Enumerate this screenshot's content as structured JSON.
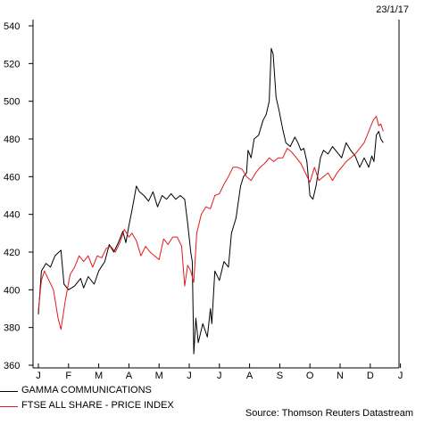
{
  "date_label": "23/1/17",
  "source": "Source: Thomson Reuters Datastream",
  "chart_data": {
    "type": "line",
    "yticks": [
      360,
      380,
      400,
      420,
      440,
      460,
      480,
      500,
      520,
      540
    ],
    "ylim": [
      360,
      540
    ],
    "months": [
      "J",
      "F",
      "M",
      "A",
      "M",
      "J",
      "J",
      "A",
      "S",
      "O",
      "N",
      "D",
      "J"
    ],
    "series": [
      {
        "name": "GAMMA COMMUNICATIONS",
        "color": "#000000",
        "values": [
          [
            0,
            387
          ],
          [
            0.1,
            410
          ],
          [
            0.25,
            414
          ],
          [
            0.4,
            412
          ],
          [
            0.55,
            418
          ],
          [
            0.75,
            421
          ],
          [
            0.85,
            403
          ],
          [
            1.0,
            400
          ],
          [
            1.2,
            402
          ],
          [
            1.4,
            406
          ],
          [
            1.5,
            401
          ],
          [
            1.65,
            407
          ],
          [
            1.85,
            403
          ],
          [
            2.0,
            410
          ],
          [
            2.2,
            415
          ],
          [
            2.35,
            424
          ],
          [
            2.5,
            420
          ],
          [
            2.65,
            425
          ],
          [
            2.8,
            431
          ],
          [
            2.9,
            425
          ],
          [
            3.0,
            434
          ],
          [
            3.1,
            442
          ],
          [
            3.25,
            455
          ],
          [
            3.35,
            452
          ],
          [
            3.5,
            450
          ],
          [
            3.65,
            447
          ],
          [
            3.8,
            452
          ],
          [
            3.95,
            444
          ],
          [
            4.1,
            450
          ],
          [
            4.25,
            448
          ],
          [
            4.4,
            451
          ],
          [
            4.55,
            448
          ],
          [
            4.7,
            450
          ],
          [
            4.85,
            448
          ],
          [
            4.95,
            435
          ],
          [
            5.05,
            420
          ],
          [
            5.1,
            415
          ],
          [
            5.15,
            366
          ],
          [
            5.22,
            385
          ],
          [
            5.3,
            372
          ],
          [
            5.45,
            382
          ],
          [
            5.6,
            375
          ],
          [
            5.7,
            390
          ],
          [
            5.75,
            382
          ],
          [
            5.85,
            410
          ],
          [
            6.0,
            405
          ],
          [
            6.15,
            415
          ],
          [
            6.3,
            412
          ],
          [
            6.4,
            430
          ],
          [
            6.55,
            438
          ],
          [
            6.7,
            455
          ],
          [
            6.8,
            460
          ],
          [
            6.9,
            462
          ],
          [
            6.95,
            474
          ],
          [
            7.05,
            470
          ],
          [
            7.15,
            480
          ],
          [
            7.3,
            482
          ],
          [
            7.45,
            490
          ],
          [
            7.55,
            493
          ],
          [
            7.65,
            500
          ],
          [
            7.72,
            528
          ],
          [
            7.78,
            525
          ],
          [
            7.88,
            502
          ],
          [
            7.98,
            495
          ],
          [
            8.1,
            485
          ],
          [
            8.2,
            478
          ],
          [
            8.35,
            476
          ],
          [
            8.5,
            481
          ],
          [
            8.6,
            478
          ],
          [
            8.7,
            474
          ],
          [
            8.8,
            475
          ],
          [
            8.9,
            468
          ],
          [
            9.0,
            450
          ],
          [
            9.1,
            448
          ],
          [
            9.2,
            455
          ],
          [
            9.35,
            470
          ],
          [
            9.45,
            474
          ],
          [
            9.6,
            472
          ],
          [
            9.75,
            476
          ],
          [
            9.9,
            473
          ],
          [
            10.05,
            470
          ],
          [
            10.2,
            478
          ],
          [
            10.35,
            474
          ],
          [
            10.5,
            471
          ],
          [
            10.65,
            465
          ],
          [
            10.8,
            470
          ],
          [
            10.95,
            465
          ],
          [
            11.05,
            471
          ],
          [
            11.12,
            468
          ],
          [
            11.2,
            482
          ],
          [
            11.28,
            484
          ],
          [
            11.35,
            480
          ],
          [
            11.43,
            478
          ]
        ]
      },
      {
        "name": "FTSE ALL SHARE - PRICE INDEX",
        "color": "#e41a1c",
        "values": [
          [
            0,
            389
          ],
          [
            0.1,
            405
          ],
          [
            0.2,
            410
          ],
          [
            0.35,
            405
          ],
          [
            0.5,
            400
          ],
          [
            0.65,
            385
          ],
          [
            0.75,
            379
          ],
          [
            0.9,
            395
          ],
          [
            1.05,
            408
          ],
          [
            1.2,
            412
          ],
          [
            1.35,
            418
          ],
          [
            1.5,
            415
          ],
          [
            1.65,
            418
          ],
          [
            1.8,
            412
          ],
          [
            1.95,
            418
          ],
          [
            2.1,
            417
          ],
          [
            2.25,
            422
          ],
          [
            2.4,
            423
          ],
          [
            2.55,
            420
          ],
          [
            2.7,
            425
          ],
          [
            2.85,
            432
          ],
          [
            3.0,
            428
          ],
          [
            3.1,
            430
          ],
          [
            3.25,
            426
          ],
          [
            3.4,
            418
          ],
          [
            3.55,
            423
          ],
          [
            3.7,
            420
          ],
          [
            3.85,
            418
          ],
          [
            4.0,
            416
          ],
          [
            4.15,
            427
          ],
          [
            4.3,
            424
          ],
          [
            4.45,
            428
          ],
          [
            4.6,
            428
          ],
          [
            4.75,
            423
          ],
          [
            4.85,
            402
          ],
          [
            4.95,
            413
          ],
          [
            5.05,
            410
          ],
          [
            5.15,
            404
          ],
          [
            5.25,
            430
          ],
          [
            5.4,
            440
          ],
          [
            5.55,
            444
          ],
          [
            5.7,
            443
          ],
          [
            5.85,
            450
          ],
          [
            6.0,
            451
          ],
          [
            6.15,
            456
          ],
          [
            6.3,
            460
          ],
          [
            6.45,
            465
          ],
          [
            6.6,
            465
          ],
          [
            6.75,
            464
          ],
          [
            6.9,
            460
          ],
          [
            7.05,
            458
          ],
          [
            7.2,
            462
          ],
          [
            7.35,
            465
          ],
          [
            7.5,
            467
          ],
          [
            7.65,
            470
          ],
          [
            7.8,
            468
          ],
          [
            7.95,
            470
          ],
          [
            8.1,
            470
          ],
          [
            8.25,
            475
          ],
          [
            8.4,
            473
          ],
          [
            8.55,
            470
          ],
          [
            8.7,
            467
          ],
          [
            8.85,
            462
          ],
          [
            9.0,
            457
          ],
          [
            9.15,
            465
          ],
          [
            9.3,
            458
          ],
          [
            9.45,
            460
          ],
          [
            9.6,
            462
          ],
          [
            9.75,
            458
          ],
          [
            9.9,
            462
          ],
          [
            10.05,
            465
          ],
          [
            10.2,
            468
          ],
          [
            10.35,
            470
          ],
          [
            10.5,
            472
          ],
          [
            10.65,
            475
          ],
          [
            10.8,
            478
          ],
          [
            10.95,
            484
          ],
          [
            11.1,
            490
          ],
          [
            11.2,
            492
          ],
          [
            11.28,
            487
          ],
          [
            11.35,
            488
          ],
          [
            11.43,
            484
          ]
        ]
      }
    ]
  }
}
